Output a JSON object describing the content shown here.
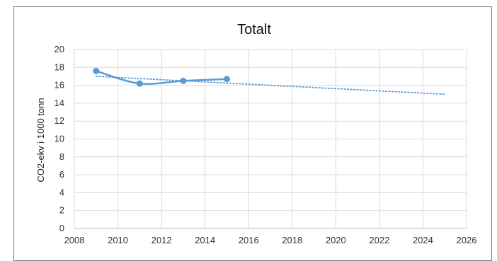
{
  "chart_data": {
    "type": "line",
    "title": "Totalt",
    "xlabel": "",
    "ylabel": "CO2-ekv i 1000 tonn",
    "xlim": [
      2008,
      2026
    ],
    "ylim": [
      0,
      20
    ],
    "x_ticks": [
      2008,
      2010,
      2012,
      2014,
      2016,
      2018,
      2020,
      2022,
      2024,
      2026
    ],
    "y_ticks": [
      0,
      2,
      4,
      6,
      8,
      10,
      12,
      14,
      16,
      18,
      20
    ],
    "grid": true,
    "legend": "none",
    "series": [
      {
        "x": [
          2009,
          2011,
          2013,
          2015
        ],
        "y": [
          17.6,
          16.2,
          16.5,
          16.7
        ],
        "color": "#5b9bd5",
        "style": "solid-markers"
      }
    ],
    "trendline": {
      "x": [
        2009,
        2025
      ],
      "y": [
        17.0,
        15.0
      ],
      "color": "#5b9bd5",
      "style": "dotted"
    }
  }
}
